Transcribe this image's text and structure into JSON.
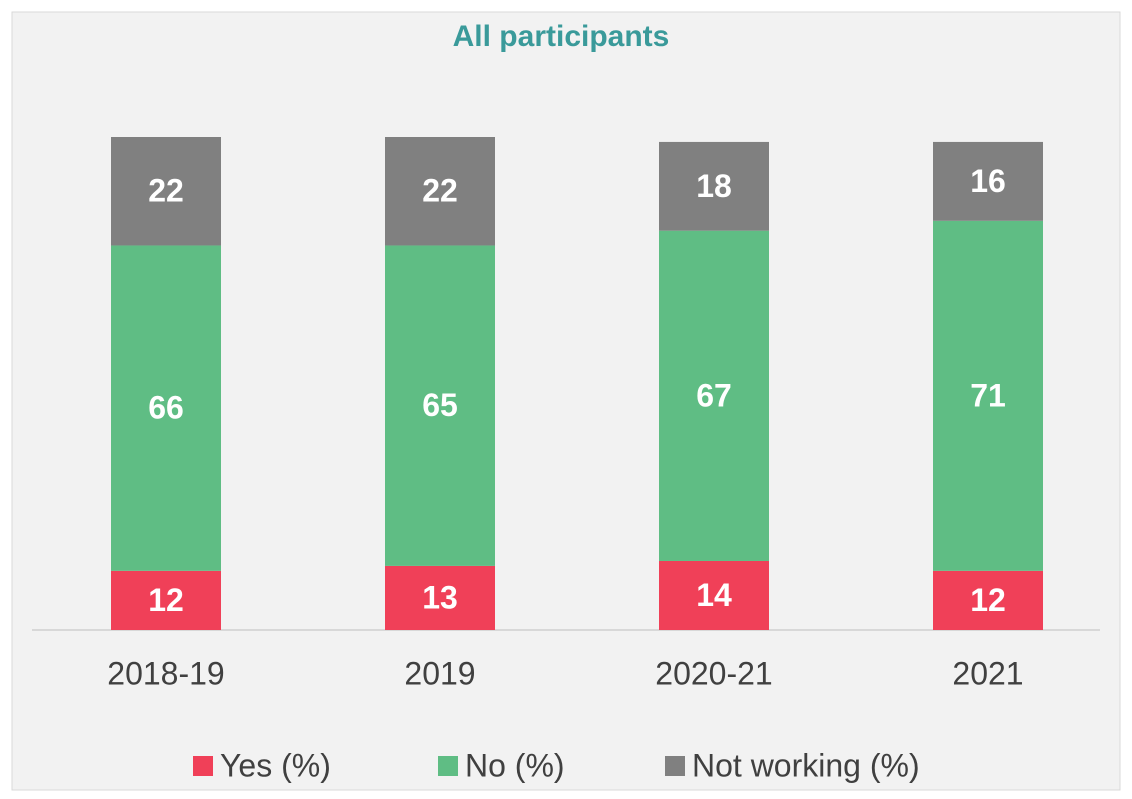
{
  "chart_data": {
    "type": "stacked_bar",
    "title": "All participants",
    "categories": [
      "2018-19",
      "2019",
      "2020-21",
      "2021"
    ],
    "series": [
      {
        "name": "Yes (%)",
        "color": "#f04058",
        "values": [
          12,
          13,
          14,
          12
        ]
      },
      {
        "name": "No (%)",
        "color": "#5fbd84",
        "values": [
          66,
          65,
          67,
          71
        ]
      },
      {
        "name": "Not working (%)",
        "color": "#808080",
        "values": [
          22,
          22,
          18,
          16
        ]
      }
    ],
    "ylim": [
      0,
      100
    ],
    "legend": "bottom"
  }
}
